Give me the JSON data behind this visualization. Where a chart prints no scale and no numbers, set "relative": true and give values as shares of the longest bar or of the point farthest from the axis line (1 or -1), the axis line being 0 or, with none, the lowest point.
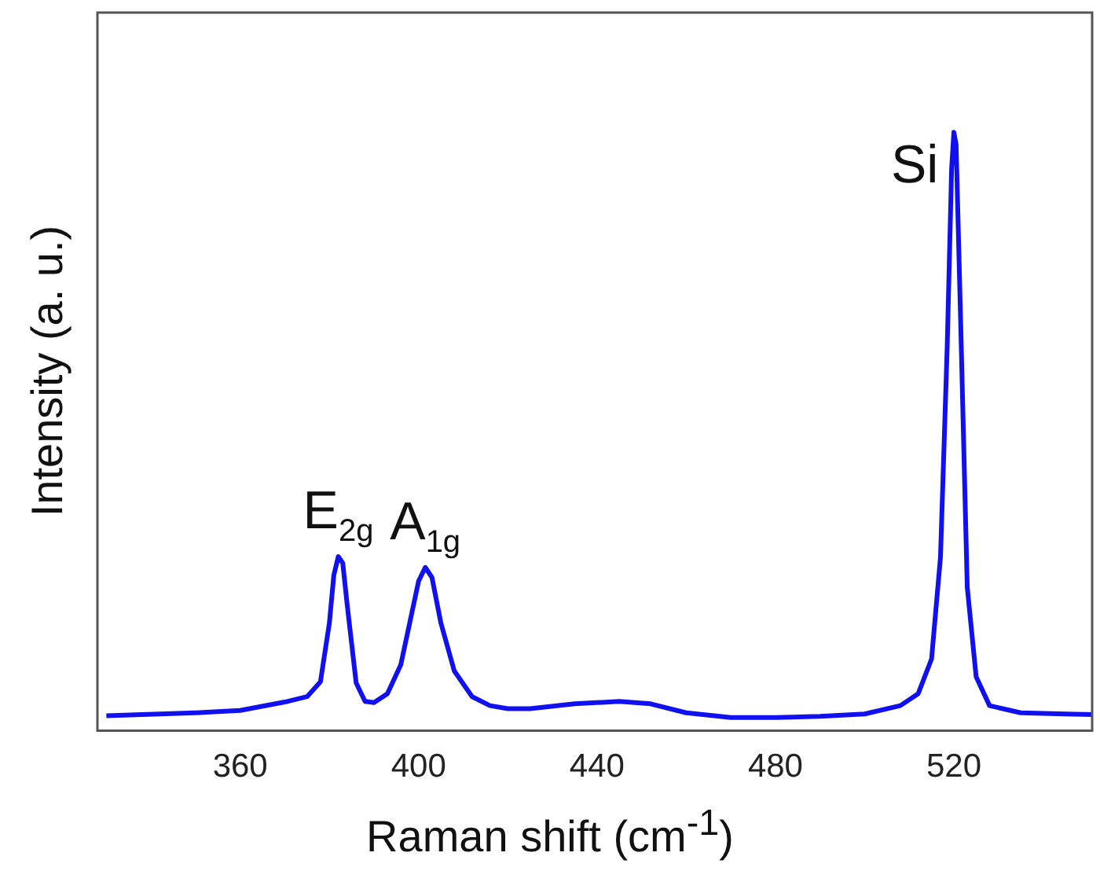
{
  "chart_data": {
    "type": "line",
    "relative": true,
    "xlabel": "Raman shift (cm$^{-1}$)",
    "ylabel": "Intensity (a. u.)",
    "xlim": [
      328,
      551
    ],
    "xticks": [
      360,
      400,
      440,
      480,
      520
    ],
    "grid": false,
    "legend": false,
    "marker": "none",
    "line_style": "solid",
    "x": [
      330,
      350,
      360,
      370,
      375,
      378,
      380,
      381,
      382,
      383,
      384,
      386,
      388,
      390,
      393,
      396,
      398,
      400,
      401.5,
      403,
      405,
      408,
      412,
      416,
      420,
      425,
      435,
      445,
      452,
      460,
      470,
      480,
      490,
      500,
      508,
      512,
      515,
      517,
      518.5,
      519.5,
      520,
      520.5,
      521.5,
      523,
      525,
      528,
      535,
      545,
      551
    ],
    "series": [
      {
        "color": "#1010f0",
        "values": [
          0.025,
          0.03,
          0.034,
          0.048,
          0.057,
          0.082,
          0.18,
          0.26,
          0.291,
          0.28,
          0.21,
          0.08,
          0.049,
          0.047,
          0.062,
          0.11,
          0.18,
          0.25,
          0.273,
          0.256,
          0.18,
          0.1,
          0.057,
          0.042,
          0.037,
          0.037,
          0.045,
          0.049,
          0.045,
          0.03,
          0.022,
          0.022,
          0.024,
          0.028,
          0.042,
          0.062,
          0.12,
          0.29,
          0.64,
          0.94,
          1,
          0.98,
          0.69,
          0.24,
          0.09,
          0.042,
          0.03,
          0.028,
          0.027
        ]
      }
    ],
    "annotations": [
      {
        "text": "E$_{2g}$",
        "x": 382,
        "y": 0.291
      },
      {
        "text": "A$_{1g}$",
        "x": 401.5,
        "y": 0.273
      },
      {
        "text": "Si",
        "x": 520,
        "y": 1
      }
    ]
  }
}
